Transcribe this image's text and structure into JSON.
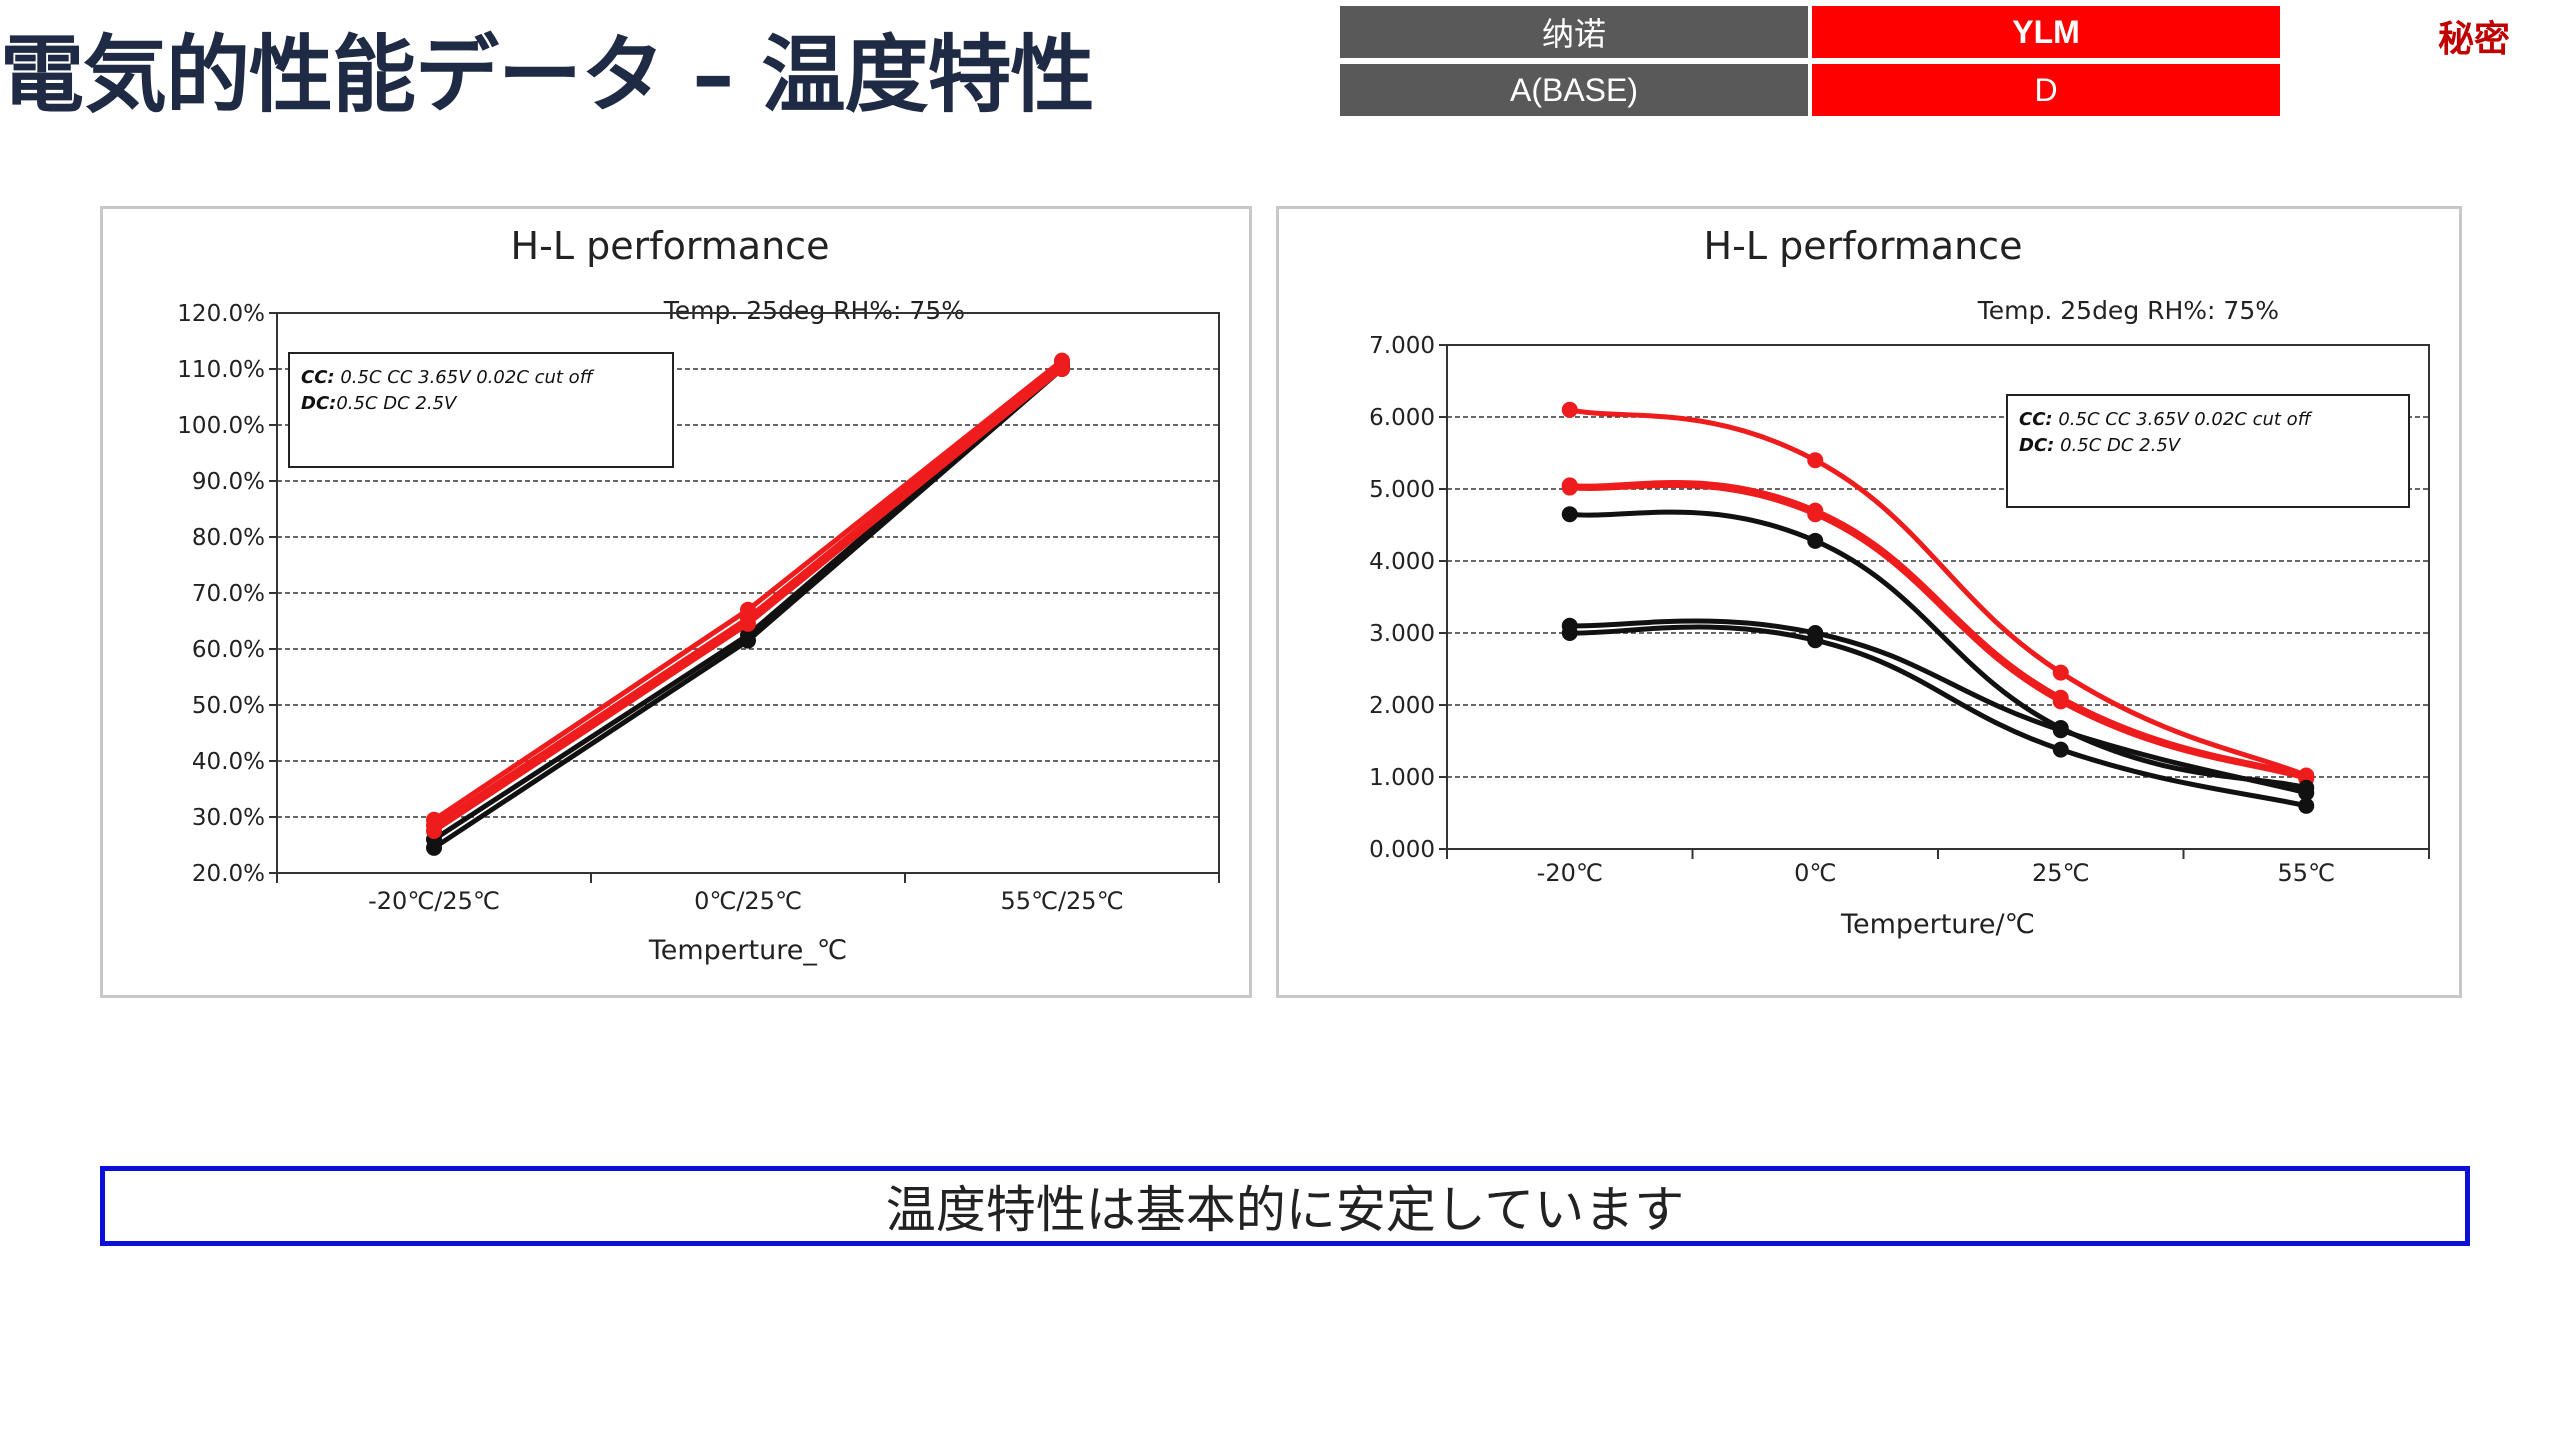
{
  "slide": {
    "title": "電気的性能データ – 温度特性",
    "confidential": "秘密",
    "conclusion": "温度特性は基本的に安定しています"
  },
  "header_table": {
    "row1": [
      "纳诺",
      "YLM"
    ],
    "row2": [
      "A(BASE)",
      "D"
    ]
  },
  "colors": {
    "red": "#ee1c1c",
    "black": "#111111",
    "border_blue": "#0a10d8"
  },
  "chart_data": [
    {
      "type": "line",
      "title": "H-L performance",
      "subtitle": "Temp.  25deg  RH%:  75%",
      "xlabel": "Temperture_℃",
      "ylabel": "",
      "categories": [
        "-20℃/25℃",
        "0℃/25℃",
        "55℃/25℃"
      ],
      "ylim": [
        20,
        120
      ],
      "yticks": [
        "20.0%",
        "30.0%",
        "40.0%",
        "50.0%",
        "60.0%",
        "70.0%",
        "80.0%",
        "90.0%",
        "100.0%",
        "110.0%",
        "120.0%"
      ],
      "annotation": {
        "cc_label": "CC:",
        "cc_text": " 0.5C CC 3.65V 0.02C cut off",
        "dc_label": "DC:",
        "dc_text": "0.5C DC 2.5V"
      },
      "grid": true,
      "series": [
        {
          "color": "#111111",
          "values": [
            24.5,
            61.5,
            110.0
          ]
        },
        {
          "color": "#111111",
          "values": [
            26.0,
            62.5,
            110.5
          ]
        },
        {
          "color": "#ee1c1c",
          "values": [
            27.5,
            64.5,
            110.0
          ]
        },
        {
          "color": "#ee1c1c",
          "values": [
            28.5,
            65.5,
            111.0
          ]
        },
        {
          "color": "#ee1c1c",
          "values": [
            29.5,
            67.0,
            111.5
          ]
        }
      ]
    },
    {
      "type": "line",
      "title": "H-L performance",
      "subtitle": "Temp.  25deg  RH%:  75%",
      "xlabel": "Temperture/℃",
      "ylabel": "",
      "categories": [
        "-20℃",
        "0℃",
        "25℃",
        "55℃"
      ],
      "ylim": [
        0,
        7
      ],
      "yticks": [
        "0.000",
        "1.000",
        "2.000",
        "3.000",
        "4.000",
        "5.000",
        "6.000",
        "7.000"
      ],
      "annotation": {
        "cc_label": "CC:",
        "cc_text": " 0.5C CC 3.65V 0.02C cut off",
        "dc_label": "DC:",
        "dc_text": " 0.5C DC 2.5V"
      },
      "grid": true,
      "series": [
        {
          "color": "#ee1c1c",
          "values": [
            6.1,
            5.4,
            2.45,
            1.02
          ]
        },
        {
          "color": "#ee1c1c",
          "values": [
            5.05,
            4.7,
            2.1,
            1.0
          ]
        },
        {
          "color": "#ee1c1c",
          "values": [
            5.02,
            4.65,
            2.05,
            0.98
          ]
        },
        {
          "color": "#111111",
          "values": [
            4.65,
            4.28,
            1.68,
            0.85
          ]
        },
        {
          "color": "#111111",
          "values": [
            3.1,
            3.0,
            1.65,
            0.78
          ]
        },
        {
          "color": "#111111",
          "values": [
            3.0,
            2.9,
            1.38,
            0.6
          ]
        }
      ]
    }
  ]
}
